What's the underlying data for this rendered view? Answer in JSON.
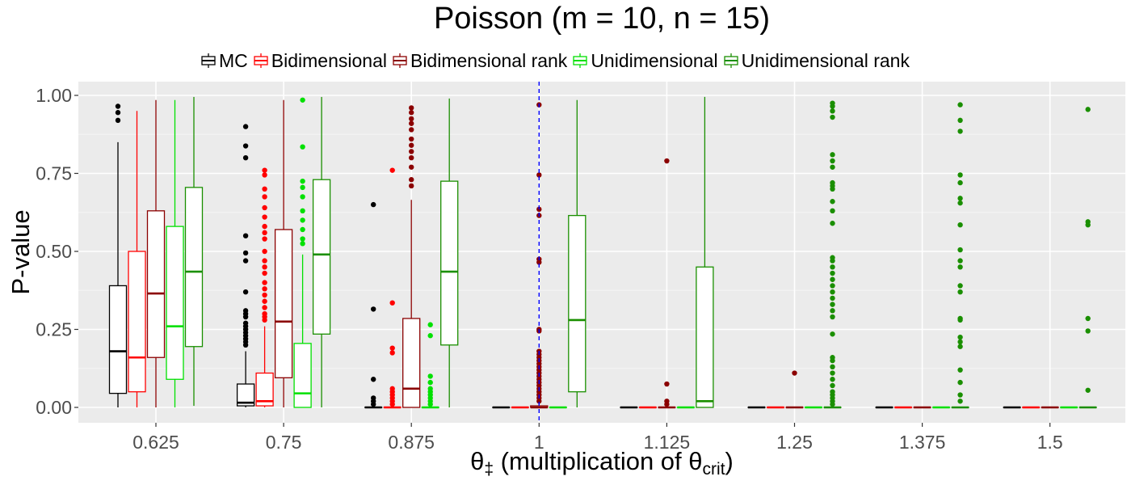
{
  "chart_data": {
    "type": "boxplot",
    "title": "Poisson (m = 10, n = 15)",
    "ylabel": "P-value",
    "xlabel": {
      "theta": "θ",
      "theta_sub": "‡",
      "text": " (multiplication of ",
      "crit_theta": "θ",
      "crit_sub": "crit",
      "close": ")"
    },
    "ylim": [
      -0.05,
      1.05
    ],
    "yticks": [
      0.0,
      0.25,
      0.5,
      0.75,
      1.0
    ],
    "ytick_labels": [
      "0.00",
      "0.25",
      "0.50",
      "0.75",
      "1.00"
    ],
    "categories": [
      "0.625",
      "0.75",
      "0.875",
      "1",
      "1.125",
      "1.25",
      "1.375",
      "1.5"
    ],
    "reference_line": {
      "x": "1",
      "color": "#0000ff",
      "style": "dashed"
    },
    "series": [
      {
        "name": "MC",
        "color": "#000000",
        "boxes": [
          {
            "q1": 0.045,
            "median": 0.18,
            "q3": 0.39,
            "whisker_low": 0.0,
            "whisker_high": 0.85,
            "outliers": [
              0.92,
              0.945,
              0.965
            ]
          },
          {
            "q1": 0.005,
            "median": 0.015,
            "q3": 0.075,
            "whisker_low": 0.0,
            "whisker_high": 0.18,
            "outliers": [
              0.9,
              0.838,
              0.8,
              0.55,
              0.495,
              0.47,
              0.37,
              0.31,
              0.3,
              0.29,
              0.27,
              0.26,
              0.25,
              0.24,
              0.23,
              0.22,
              0.21,
              0.2
            ]
          },
          {
            "q1": 0.0,
            "median": 0.0,
            "q3": 0.0,
            "whisker_low": 0.0,
            "whisker_high": 0.0,
            "outliers": [
              0.65,
              0.315,
              0.09,
              0.03,
              0.02,
              0.01
            ]
          },
          {
            "q1": 0.0,
            "median": 0.0,
            "q3": 0.0,
            "whisker_low": 0.0,
            "whisker_high": 0.0,
            "outliers": []
          },
          {
            "q1": 0.0,
            "median": 0.0,
            "q3": 0.0,
            "whisker_low": 0.0,
            "whisker_high": 0.0,
            "outliers": []
          },
          {
            "q1": 0.0,
            "median": 0.0,
            "q3": 0.0,
            "whisker_low": 0.0,
            "whisker_high": 0.0,
            "outliers": []
          },
          {
            "q1": 0.0,
            "median": 0.0,
            "q3": 0.0,
            "whisker_low": 0.0,
            "whisker_high": 0.0,
            "outliers": []
          },
          {
            "q1": 0.0,
            "median": 0.0,
            "q3": 0.0,
            "whisker_low": 0.0,
            "whisker_high": 0.0,
            "outliers": []
          }
        ]
      },
      {
        "name": "Bidimensional",
        "color": "#ff0000",
        "boxes": [
          {
            "q1": 0.05,
            "median": 0.16,
            "q3": 0.5,
            "whisker_low": 0.0,
            "whisker_high": 0.95,
            "outliers": []
          },
          {
            "q1": 0.005,
            "median": 0.02,
            "q3": 0.11,
            "whisker_low": 0.0,
            "whisker_high": 0.26,
            "outliers": [
              0.76,
              0.745,
              0.7,
              0.675,
              0.64,
              0.61,
              0.58,
              0.56,
              0.54,
              0.5,
              0.47,
              0.45,
              0.43,
              0.4,
              0.38,
              0.36,
              0.34,
              0.32,
              0.3,
              0.29,
              0.28
            ]
          },
          {
            "q1": 0.0,
            "median": 0.0,
            "q3": 0.0,
            "whisker_low": 0.0,
            "whisker_high": 0.0,
            "outliers": [
              0.76,
              0.335,
              0.19,
              0.175,
              0.06,
              0.05,
              0.04,
              0.03,
              0.02,
              0.01
            ]
          },
          {
            "q1": 0.0,
            "median": 0.0,
            "q3": 0.0,
            "whisker_low": 0.0,
            "whisker_high": 0.0,
            "outliers": []
          },
          {
            "q1": 0.0,
            "median": 0.0,
            "q3": 0.0,
            "whisker_low": 0.0,
            "whisker_high": 0.0,
            "outliers": []
          },
          {
            "q1": 0.0,
            "median": 0.0,
            "q3": 0.0,
            "whisker_low": 0.0,
            "whisker_high": 0.0,
            "outliers": []
          },
          {
            "q1": 0.0,
            "median": 0.0,
            "q3": 0.0,
            "whisker_low": 0.0,
            "whisker_high": 0.0,
            "outliers": []
          },
          {
            "q1": 0.0,
            "median": 0.0,
            "q3": 0.0,
            "whisker_low": 0.0,
            "whisker_high": 0.0,
            "outliers": []
          }
        ]
      },
      {
        "name": "Bidimensional rank",
        "color": "#8b0000",
        "boxes": [
          {
            "q1": 0.16,
            "median": 0.365,
            "q3": 0.63,
            "whisker_low": 0.0,
            "whisker_high": 0.985,
            "outliers": []
          },
          {
            "q1": 0.095,
            "median": 0.275,
            "q3": 0.57,
            "whisker_low": 0.0,
            "whisker_high": 0.985,
            "outliers": []
          },
          {
            "q1": 0.0,
            "median": 0.06,
            "q3": 0.285,
            "whisker_low": 0.0,
            "whisker_high": 0.665,
            "outliers": [
              0.96,
              0.945,
              0.925,
              0.91,
              0.89,
              0.86,
              0.84,
              0.82,
              0.8,
              0.77,
              0.73,
              0.71
            ]
          },
          {
            "q1": 0.0,
            "median": 0.0,
            "q3": 0.005,
            "whisker_low": 0.0,
            "whisker_high": 0.01,
            "outliers": [
              0.97,
              0.745,
              0.635,
              0.615,
              0.475,
              0.465,
              0.25,
              0.245,
              0.18,
              0.17,
              0.16,
              0.15,
              0.14,
              0.13,
              0.12,
              0.11,
              0.1,
              0.09,
              0.08,
              0.07,
              0.06,
              0.05,
              0.04,
              0.03,
              0.02
            ]
          },
          {
            "q1": 0.0,
            "median": 0.0,
            "q3": 0.0,
            "whisker_low": 0.0,
            "whisker_high": 0.0,
            "outliers": [
              0.79,
              0.075,
              0.02,
              0.01
            ]
          },
          {
            "q1": 0.0,
            "median": 0.0,
            "q3": 0.0,
            "whisker_low": 0.0,
            "whisker_high": 0.0,
            "outliers": [
              0.11
            ]
          },
          {
            "q1": 0.0,
            "median": 0.0,
            "q3": 0.0,
            "whisker_low": 0.0,
            "whisker_high": 0.0,
            "outliers": []
          },
          {
            "q1": 0.0,
            "median": 0.0,
            "q3": 0.0,
            "whisker_low": 0.0,
            "whisker_high": 0.0,
            "outliers": []
          }
        ]
      },
      {
        "name": "Unidimensional",
        "color": "#00e000",
        "boxes": [
          {
            "q1": 0.09,
            "median": 0.26,
            "q3": 0.58,
            "whisker_low": 0.0,
            "whisker_high": 0.985,
            "outliers": []
          },
          {
            "q1": 0.0,
            "median": 0.045,
            "q3": 0.205,
            "whisker_low": 0.0,
            "whisker_high": 0.49,
            "outliers": [
              0.985,
              0.835,
              0.725,
              0.705,
              0.675,
              0.63,
              0.6,
              0.57,
              0.54,
              0.525
            ]
          },
          {
            "q1": 0.0,
            "median": 0.0,
            "q3": 0.0,
            "whisker_low": 0.0,
            "whisker_high": 0.0,
            "outliers": [
              0.265,
              0.23,
              0.1,
              0.08,
              0.06,
              0.05,
              0.04,
              0.03,
              0.02,
              0.01
            ]
          },
          {
            "q1": 0.0,
            "median": 0.0,
            "q3": 0.0,
            "whisker_low": 0.0,
            "whisker_high": 0.0,
            "outliers": []
          },
          {
            "q1": 0.0,
            "median": 0.0,
            "q3": 0.0,
            "whisker_low": 0.0,
            "whisker_high": 0.0,
            "outliers": []
          },
          {
            "q1": 0.0,
            "median": 0.0,
            "q3": 0.0,
            "whisker_low": 0.0,
            "whisker_high": 0.0,
            "outliers": []
          },
          {
            "q1": 0.0,
            "median": 0.0,
            "q3": 0.0,
            "whisker_low": 0.0,
            "whisker_high": 0.0,
            "outliers": []
          },
          {
            "q1": 0.0,
            "median": 0.0,
            "q3": 0.0,
            "whisker_low": 0.0,
            "whisker_high": 0.0,
            "outliers": []
          }
        ]
      },
      {
        "name": "Unidimensional rank",
        "color": "#1a8f00",
        "boxes": [
          {
            "q1": 0.195,
            "median": 0.435,
            "q3": 0.705,
            "whisker_low": 0.005,
            "whisker_high": 0.995,
            "outliers": []
          },
          {
            "q1": 0.235,
            "median": 0.49,
            "q3": 0.73,
            "whisker_low": 0.0,
            "whisker_high": 0.995,
            "outliers": []
          },
          {
            "q1": 0.2,
            "median": 0.435,
            "q3": 0.725,
            "whisker_low": 0.0,
            "whisker_high": 0.99,
            "outliers": []
          },
          {
            "q1": 0.05,
            "median": 0.28,
            "q3": 0.615,
            "whisker_low": 0.0,
            "whisker_high": 0.985,
            "outliers": []
          },
          {
            "q1": 0.0,
            "median": 0.02,
            "q3": 0.45,
            "whisker_low": 0.0,
            "whisker_high": 0.995,
            "outliers": []
          },
          {
            "q1": 0.0,
            "median": 0.0,
            "q3": 0.0,
            "whisker_low": 0.0,
            "whisker_high": 0.0,
            "outliers": [
              0.975,
              0.965,
              0.95,
              0.93,
              0.81,
              0.79,
              0.77,
              0.72,
              0.71,
              0.7,
              0.66,
              0.63,
              0.59,
              0.48,
              0.47,
              0.45,
              0.43,
              0.41,
              0.39,
              0.37,
              0.35,
              0.33,
              0.31,
              0.29,
              0.235,
              0.16,
              0.15,
              0.13,
              0.11,
              0.09,
              0.07,
              0.05,
              0.04,
              0.03,
              0.02,
              0.01
            ]
          },
          {
            "q1": 0.0,
            "median": 0.0,
            "q3": 0.0,
            "whisker_low": 0.0,
            "whisker_high": 0.0,
            "outliers": [
              0.97,
              0.92,
              0.885,
              0.745,
              0.72,
              0.67,
              0.655,
              0.585,
              0.505,
              0.47,
              0.45,
              0.39,
              0.37,
              0.285,
              0.28,
              0.225,
              0.21,
              0.195,
              0.12,
              0.08,
              0.04,
              0.02
            ]
          },
          {
            "q1": 0.0,
            "median": 0.0,
            "q3": 0.0,
            "whisker_low": 0.0,
            "whisker_high": 0.0,
            "outliers": [
              0.955,
              0.595,
              0.585,
              0.285,
              0.245,
              0.055
            ]
          }
        ]
      }
    ]
  }
}
